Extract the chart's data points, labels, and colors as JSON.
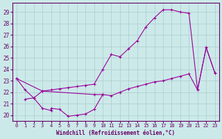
{
  "xlabel": "Windchill (Refroidissement éolien,°C)",
  "background_color": "#cce9e9",
  "line_color": "#990099",
  "grid_color": "#aacccc",
  "xlim": [
    -0.5,
    23.5
  ],
  "ylim": [
    19.5,
    29.8
  ],
  "xticks": [
    0,
    1,
    2,
    3,
    4,
    5,
    6,
    7,
    8,
    9,
    10,
    11,
    12,
    13,
    14,
    15,
    16,
    17,
    18,
    19,
    20,
    21,
    22,
    23
  ],
  "yticks": [
    20,
    21,
    22,
    23,
    24,
    25,
    26,
    27,
    28,
    29
  ],
  "font_color": "#660066",
  "line1": [
    [
      0,
      23.2
    ],
    [
      1,
      22.2
    ],
    [
      2,
      21.5
    ],
    [
      3,
      22.1
    ],
    [
      4,
      22.2
    ],
    [
      5,
      22.3
    ],
    [
      6,
      22.4
    ],
    [
      7,
      22.5
    ],
    [
      8,
      22.6
    ],
    [
      9,
      22.7
    ],
    [
      10,
      24.0
    ],
    [
      11,
      25.3
    ],
    [
      12,
      25.1
    ],
    [
      13,
      25.8
    ],
    [
      14,
      26.5
    ],
    [
      15,
      27.7
    ],
    [
      16,
      28.5
    ],
    [
      17,
      29.2
    ],
    [
      18,
      29.2
    ],
    [
      19,
      29.0
    ],
    [
      20,
      28.9
    ],
    [
      21,
      22.2
    ],
    [
      22,
      25.9
    ],
    [
      23,
      23.7
    ]
  ],
  "line2": [
    [
      0,
      23.2
    ],
    [
      3,
      22.1
    ],
    [
      9,
      21.8
    ],
    [
      10,
      21.8
    ],
    [
      11,
      21.7
    ],
    [
      12,
      22.0
    ],
    [
      13,
      22.3
    ],
    [
      14,
      22.5
    ],
    [
      15,
      22.7
    ],
    [
      16,
      22.9
    ],
    [
      17,
      23.0
    ],
    [
      18,
      23.2
    ],
    [
      19,
      23.4
    ],
    [
      20,
      23.6
    ],
    [
      21,
      22.2
    ],
    [
      22,
      25.9
    ],
    [
      23,
      23.7
    ]
  ],
  "line3": [
    [
      1,
      21.4
    ],
    [
      2,
      21.5
    ],
    [
      3,
      20.6
    ],
    [
      4,
      20.4
    ],
    [
      4,
      20.6
    ],
    [
      5,
      20.5
    ],
    [
      6,
      19.9
    ],
    [
      7,
      20.0
    ],
    [
      8,
      20.1
    ],
    [
      9,
      20.5
    ],
    [
      10,
      21.8
    ]
  ]
}
